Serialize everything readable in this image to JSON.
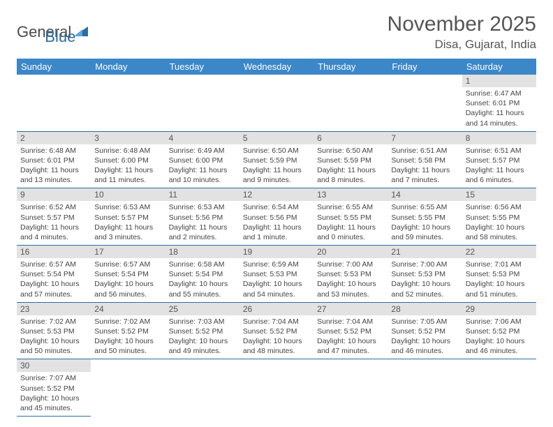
{
  "logo": {
    "textGeneral": "General",
    "textBlue": "Blue"
  },
  "header": {
    "title": "November 2025",
    "location": "Disa, Gujarat, India"
  },
  "colors": {
    "headerBg": "#3b87c8",
    "dayBg": "#e2e2e2",
    "border": "#2d6ca2"
  },
  "weekdays": [
    "Sunday",
    "Monday",
    "Tuesday",
    "Wednesday",
    "Thursday",
    "Friday",
    "Saturday"
  ],
  "days": {
    "1": {
      "sr": "6:47 AM",
      "ss": "6:01 PM",
      "dl": "11 hours and 14 minutes."
    },
    "2": {
      "sr": "6:48 AM",
      "ss": "6:01 PM",
      "dl": "11 hours and 13 minutes."
    },
    "3": {
      "sr": "6:48 AM",
      "ss": "6:00 PM",
      "dl": "11 hours and 11 minutes."
    },
    "4": {
      "sr": "6:49 AM",
      "ss": "6:00 PM",
      "dl": "11 hours and 10 minutes."
    },
    "5": {
      "sr": "6:50 AM",
      "ss": "5:59 PM",
      "dl": "11 hours and 9 minutes."
    },
    "6": {
      "sr": "6:50 AM",
      "ss": "5:59 PM",
      "dl": "11 hours and 8 minutes."
    },
    "7": {
      "sr": "6:51 AM",
      "ss": "5:58 PM",
      "dl": "11 hours and 7 minutes."
    },
    "8": {
      "sr": "6:51 AM",
      "ss": "5:57 PM",
      "dl": "11 hours and 6 minutes."
    },
    "9": {
      "sr": "6:52 AM",
      "ss": "5:57 PM",
      "dl": "11 hours and 4 minutes."
    },
    "10": {
      "sr": "6:53 AM",
      "ss": "5:57 PM",
      "dl": "11 hours and 3 minutes."
    },
    "11": {
      "sr": "6:53 AM",
      "ss": "5:56 PM",
      "dl": "11 hours and 2 minutes."
    },
    "12": {
      "sr": "6:54 AM",
      "ss": "5:56 PM",
      "dl": "11 hours and 1 minute."
    },
    "13": {
      "sr": "6:55 AM",
      "ss": "5:55 PM",
      "dl": "11 hours and 0 minutes."
    },
    "14": {
      "sr": "6:55 AM",
      "ss": "5:55 PM",
      "dl": "10 hours and 59 minutes."
    },
    "15": {
      "sr": "6:56 AM",
      "ss": "5:55 PM",
      "dl": "10 hours and 58 minutes."
    },
    "16": {
      "sr": "6:57 AM",
      "ss": "5:54 PM",
      "dl": "10 hours and 57 minutes."
    },
    "17": {
      "sr": "6:57 AM",
      "ss": "5:54 PM",
      "dl": "10 hours and 56 minutes."
    },
    "18": {
      "sr": "6:58 AM",
      "ss": "5:54 PM",
      "dl": "10 hours and 55 minutes."
    },
    "19": {
      "sr": "6:59 AM",
      "ss": "5:53 PM",
      "dl": "10 hours and 54 minutes."
    },
    "20": {
      "sr": "7:00 AM",
      "ss": "5:53 PM",
      "dl": "10 hours and 53 minutes."
    },
    "21": {
      "sr": "7:00 AM",
      "ss": "5:53 PM",
      "dl": "10 hours and 52 minutes."
    },
    "22": {
      "sr": "7:01 AM",
      "ss": "5:53 PM",
      "dl": "10 hours and 51 minutes."
    },
    "23": {
      "sr": "7:02 AM",
      "ss": "5:53 PM",
      "dl": "10 hours and 50 minutes."
    },
    "24": {
      "sr": "7:02 AM",
      "ss": "5:52 PM",
      "dl": "10 hours and 50 minutes."
    },
    "25": {
      "sr": "7:03 AM",
      "ss": "5:52 PM",
      "dl": "10 hours and 49 minutes."
    },
    "26": {
      "sr": "7:04 AM",
      "ss": "5:52 PM",
      "dl": "10 hours and 48 minutes."
    },
    "27": {
      "sr": "7:04 AM",
      "ss": "5:52 PM",
      "dl": "10 hours and 47 minutes."
    },
    "28": {
      "sr": "7:05 AM",
      "ss": "5:52 PM",
      "dl": "10 hours and 46 minutes."
    },
    "29": {
      "sr": "7:06 AM",
      "ss": "5:52 PM",
      "dl": "10 hours and 46 minutes."
    },
    "30": {
      "sr": "7:07 AM",
      "ss": "5:52 PM",
      "dl": "10 hours and 45 minutes."
    }
  },
  "labels": {
    "sunrise": "Sunrise:",
    "sunset": "Sunset:",
    "daylight": "Daylight:"
  },
  "layout": {
    "firstDayOffset": 6,
    "daysInMonth": 30
  }
}
